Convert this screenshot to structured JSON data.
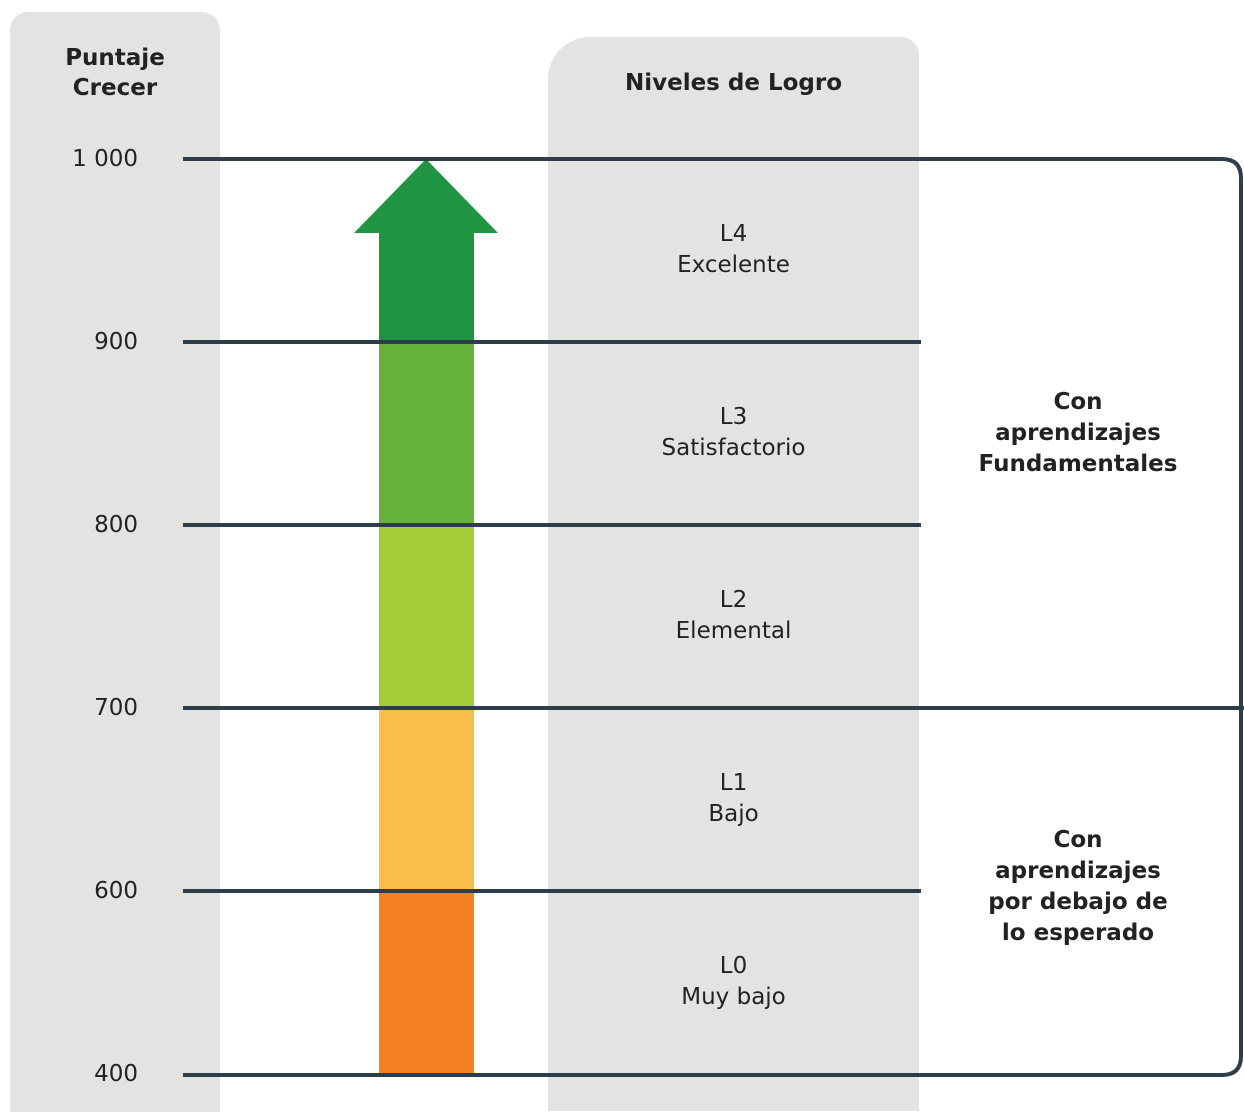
{
  "header": {
    "score_line1": "Puntaje",
    "score_line2": "Crecer",
    "levels_title": "Niveles de Logro"
  },
  "scale": {
    "min": 400,
    "max": 1000,
    "ticks": [
      "1 000",
      "900",
      "800",
      "700",
      "600",
      "400"
    ]
  },
  "levels": [
    {
      "code": "L4",
      "name": "Excelente",
      "from": 900,
      "to": 1000,
      "color": "#1f9441"
    },
    {
      "code": "L3",
      "name": "Satisfactorio",
      "from": 800,
      "to": 900,
      "color": "#67b23c"
    },
    {
      "code": "L2",
      "name": "Elemental",
      "from": 700,
      "to": 800,
      "color": "#a6cd38"
    },
    {
      "code": "L1",
      "name": "Bajo",
      "from": 600,
      "to": 700,
      "color": "#fbbd4b"
    },
    {
      "code": "L0",
      "name": "Muy bajo",
      "from": 400,
      "to": 600,
      "color": "#f48024"
    }
  ],
  "groups": {
    "fundamental": {
      "line1": "Con",
      "line2": "aprendizajes",
      "line3": "Fundamentales"
    },
    "below": {
      "line1": "Con",
      "line2": "aprendizajes",
      "line3": "por debajo de",
      "line4": "lo esperado"
    }
  },
  "colors": {
    "lines": "#2d3e4a",
    "panel": "#e3e4e2"
  }
}
